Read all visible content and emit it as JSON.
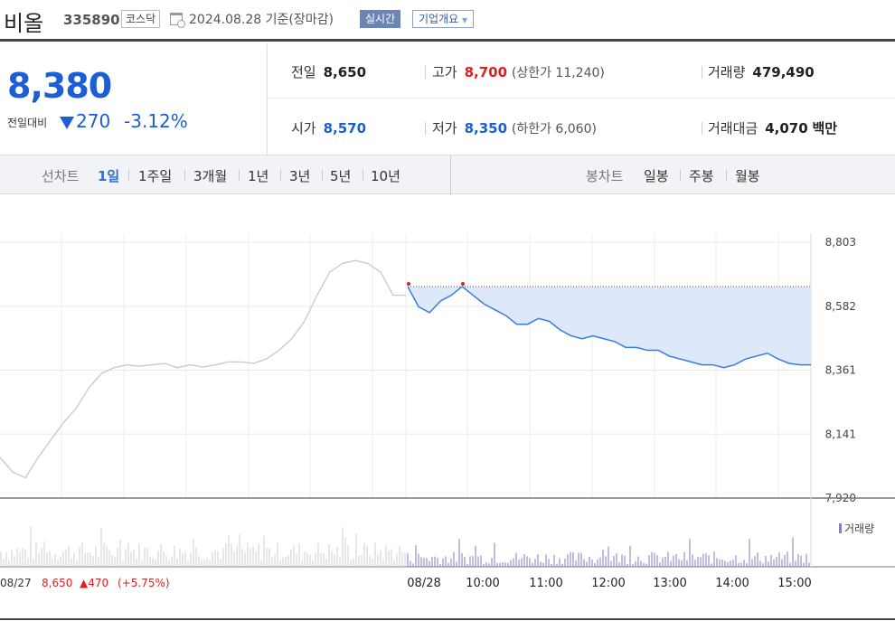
{
  "header": {
    "stock_name": "비올",
    "stock_code": "335890",
    "market": "코스닥",
    "date_text": "2024.08.28 기준(장마감)",
    "realtime_label": "실시간",
    "company_info_label": "기업개요"
  },
  "price": {
    "current": "8,380",
    "change_label": "전일대비",
    "change_direction": "down",
    "change": "270",
    "change_pct": "-3.12%"
  },
  "stats": {
    "prev_close_label": "전일",
    "prev_close": "8,650",
    "high_label": "고가",
    "high": "8,700",
    "upper_limit_label": "상한가",
    "upper_limit": "11,240",
    "volume_label": "거래량",
    "volume": "479,490",
    "open_label": "시가",
    "open": "8,570",
    "low_label": "저가",
    "low": "8,350",
    "lower_limit_label": "하한가",
    "lower_limit": "6,060",
    "amount_label": "거래대금",
    "amount": "4,070",
    "amount_unit": "백만"
  },
  "period_bar": {
    "line_chart_label": "선차트",
    "line_periods": [
      "1일",
      "1주일",
      "3개월",
      "1년",
      "3년",
      "5년",
      "10년"
    ],
    "selected": "1일",
    "candle_chart_label": "봉차트",
    "candle_periods": [
      "일봉",
      "주봉",
      "월봉"
    ]
  },
  "colors": {
    "accent": "#1a5fd6",
    "up": "#e01e1e",
    "volume": "#8a7ac0",
    "prev_line": "#c8c8c8"
  },
  "chart_data": {
    "type": "line",
    "y_ticks": [
      "8,803",
      "8,582",
      "8,361",
      "8,141",
      "7,920"
    ],
    "ylim": [
      7920,
      8803
    ],
    "x_ticks": [
      "08/28",
      "10:00",
      "11:00",
      "12:00",
      "13:00",
      "14:00",
      "15:00"
    ],
    "prev_day_label": "08/27",
    "prev_day_close": "8,650",
    "prev_day_change": "▲470",
    "prev_day_pct": "(+5.75%)",
    "reference_line": 8650,
    "volume_legend": "거래량",
    "series": [
      {
        "values_prev_day": [
          8060,
          8010,
          7990,
          8060,
          8120,
          8180,
          8230,
          8300,
          8350,
          8370,
          8380,
          8375,
          8380,
          8385,
          8370,
          8380,
          8372,
          8380,
          8390,
          8390,
          8385,
          8400,
          8430,
          8470,
          8530,
          8620,
          8700,
          8730,
          8740,
          8730,
          8700,
          8620,
          8620
        ]
      },
      {
        "values": [
          8650,
          8580,
          8560,
          8600,
          8620,
          8650,
          8620,
          8590,
          8570,
          8550,
          8520,
          8520,
          8540,
          8530,
          8500,
          8480,
          8470,
          8480,
          8470,
          8460,
          8440,
          8440,
          8430,
          8430,
          8410,
          8400,
          8390,
          8380,
          8380,
          8370,
          8380,
          8400,
          8410,
          8420,
          8400,
          8385,
          8380,
          8380
        ]
      }
    ]
  }
}
